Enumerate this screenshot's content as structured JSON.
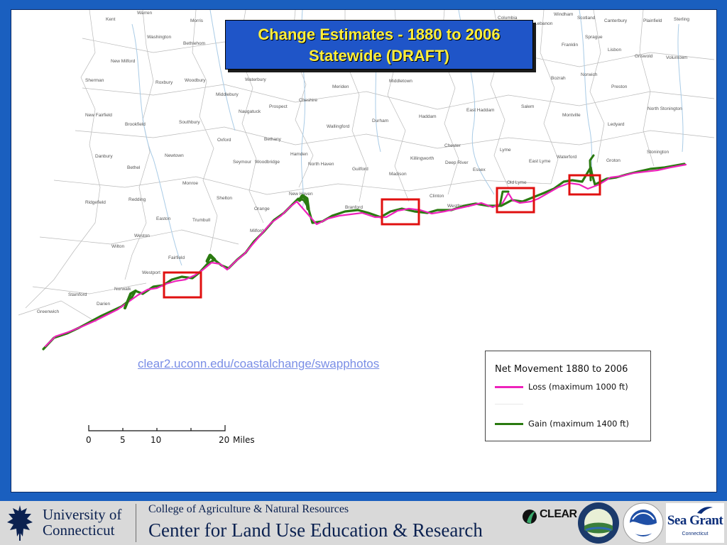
{
  "title": {
    "line1": "Change Estimates - 1880 to 2006",
    "line2": "Statewide (DRAFT)"
  },
  "url": "clear2.uconn.edu/coastalchange/swapphotos",
  "legend": {
    "title": "Net Movement 1880 to 2006",
    "loss_label": "Loss (maximum 1000 ft)",
    "gain_label": "Gain (maximum 1400 ft)",
    "loss_color": "#ee22bb",
    "gain_color": "#2a7a10"
  },
  "scale": {
    "ticks": [
      "0",
      "5",
      "10",
      "20"
    ],
    "unit": "Miles"
  },
  "footer": {
    "university_line1": "University of",
    "university_line2": "Connecticut",
    "college": "College of Agriculture & Natural Resources",
    "center": "Center for Land Use Education & Research",
    "clear_logo": "CLEAR",
    "seagrant_logo": "Sea Grant",
    "seagrant_sub": "Connecticut"
  },
  "towns": [
    "Warren",
    "Morris",
    "Kent",
    "Washington",
    "Bethlehom",
    "New Milford",
    "Sherman",
    "Roxbury",
    "Woodbury",
    "Middlebury",
    "Waterbury",
    "Naugatuck",
    "Prospect",
    "Cheshire",
    "Meriden",
    "Middletown",
    "New Fairfield",
    "Brookfield",
    "Southbury",
    "Oxford",
    "Bethany",
    "Wallingford",
    "Durham",
    "Haddam",
    "East Haddam",
    "Salem",
    "Montville",
    "Ledyard",
    "North Stonington",
    "Danbury",
    "Newtown",
    "Bethel",
    "Seymour",
    "Woodbridge",
    "Hamden",
    "North Haven",
    "Killingworth",
    "Chester",
    "Deep River",
    "Essex",
    "Lyme",
    "East Lyme",
    "Waterford",
    "Groton",
    "Stonington",
    "Monroe",
    "Shelton",
    "Guilford",
    "Madison",
    "Old Lyme",
    "Ridgefield",
    "Redding",
    "Orange",
    "New Haven",
    "Branford",
    "Clinton",
    "Westbrook",
    "Easton",
    "Trumbull",
    "Milford",
    "Weston",
    "Wilton",
    "Fairfield",
    "Westport",
    "Norwalk",
    "Stamford",
    "Darien",
    "Greenwich",
    "Columbia",
    "Windham",
    "Scotland",
    "Canterbury",
    "Plainfield",
    "Sterling",
    "Lebanon",
    "Sprague",
    "Franklin",
    "Lisbon",
    "Griswold",
    "Voluntown",
    "Bozrah",
    "Norwich",
    "Preston"
  ]
}
